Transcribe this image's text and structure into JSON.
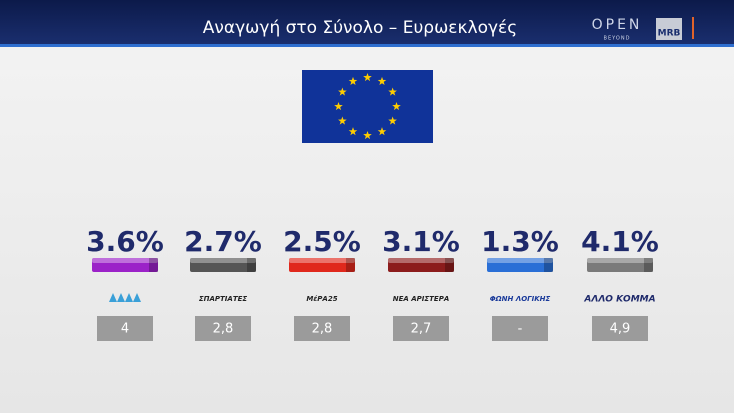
{
  "header": {
    "title": "Αναγωγή στο Σύνολο – Ευρωεκλογές",
    "brand": "OPEN",
    "brand_sub": "BEYOND",
    "pollster": "MRB"
  },
  "parties": [
    {
      "result": "3.6%",
      "logo_text": null,
      "previous": "4",
      "color": "#9b22c8"
    },
    {
      "result": "2.7%",
      "logo_text": "ΣΠΑΡΤΙΑΤΕΣ",
      "previous": "2,8",
      "color": "#555555"
    },
    {
      "result": "2.5%",
      "logo_text": "ΜέΡΑ25",
      "previous": "2,8",
      "color": "#e0281c"
    },
    {
      "result": "3.1%",
      "logo_text": "ΝΕΑ ΑΡΙΣΤΕΡΑ",
      "previous": "2,7",
      "color": "#8c1c1c"
    },
    {
      "result": "1.3%",
      "logo_text": "ΦΩΝΗ ΛΟΓΙΚΗΣ",
      "previous": "-",
      "color": "#2a6fd6"
    },
    {
      "result": "4.1%",
      "logo_text": "ΑΛΛΟ ΚΟΜΜΑ",
      "previous": "4,9",
      "color": "#7a7a7a"
    }
  ]
}
